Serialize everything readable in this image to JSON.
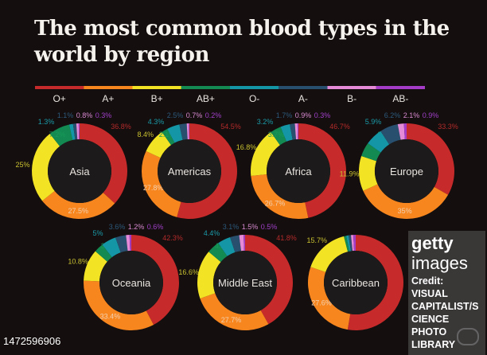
{
  "chart_data": {
    "type": "pie",
    "variant": "donut",
    "title": "The most common blood types in the world by region",
    "legend": [
      "O+",
      "A+",
      "B+",
      "AB+",
      "O-",
      "A-",
      "B-",
      "AB-"
    ],
    "legend_placement": "top",
    "colors": [
      "#c62a2a",
      "#f7861e",
      "#f2e324",
      "#128a52",
      "#1596a6",
      "#28506e",
      "#e58ad6",
      "#a53cc8"
    ],
    "label_colors": [
      "#b42a2a",
      "#e07a20",
      "#c8c030",
      "#1a9a5a",
      "#1a9aa8",
      "#2c5a7c",
      "#d88ad0",
      "#a040c8"
    ],
    "regions": [
      {
        "name": "Asia",
        "values": [
          36.8,
          27.5,
          25,
          7.2,
          1.3,
          1.1,
          0.8,
          0.3
        ]
      },
      {
        "name": "Americas",
        "values": [
          54.5,
          27.8,
          8.4,
          2.1,
          4.3,
          2.5,
          0.7,
          0.2
        ]
      },
      {
        "name": "Africa",
        "values": [
          46.7,
          26.7,
          16.8,
          3.7,
          3.2,
          1.7,
          0.9,
          0.3
        ]
      },
      {
        "name": "Europe",
        "values": [
          33.3,
          35,
          11.9,
          4.8,
          5.9,
          6.2,
          2.1,
          0.9
        ]
      },
      {
        "name": "Oceania",
        "values": [
          42.3,
          33.4,
          10.8,
          3.2,
          5,
          3.6,
          1.2,
          0.6
        ]
      },
      {
        "name": "Middle East",
        "values": [
          41.8,
          27.7,
          16.6,
          4.3,
          4.4,
          3.1,
          1.5,
          0.5
        ]
      },
      {
        "name": "Caribbean",
        "values": [
          null,
          27.6,
          15.7,
          null,
          null,
          null,
          null,
          null
        ]
      }
    ]
  },
  "watermark": {
    "logo_bold": "getty",
    "logo_light": "images",
    "credit_line1": "Credit: VISUAL",
    "credit_line2": "CAPITALIST/SCIENCE PHOTO LIBRARY",
    "image_id": "1472596906"
  }
}
